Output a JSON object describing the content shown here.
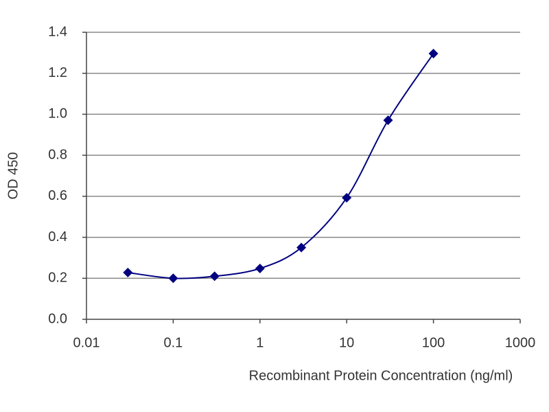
{
  "chart_data": {
    "type": "line",
    "x_label": "Recombinant Protein Concentration (ng/ml)",
    "y_label": "OD 450",
    "x_scale": "log",
    "grid": true,
    "x": [
      0.03,
      0.1,
      0.3,
      1,
      3,
      10,
      30,
      100
    ],
    "series": [
      {
        "color": "#000080",
        "values": [
          0.228,
          0.2,
          0.21,
          0.248,
          0.35,
          0.593,
          0.971,
          1.296
        ]
      }
    ],
    "xlim": [
      0.01,
      1000
    ],
    "xticks": [
      0.01,
      0.1,
      1,
      10,
      100,
      1000
    ],
    "ylim": [
      0,
      1.4
    ],
    "yticks": [
      {
        "value": 0,
        "label": "0.0"
      },
      0.2,
      0.4,
      0.6,
      0.8,
      {
        "value": 1,
        "label": "1.0"
      },
      1.2,
      1.4
    ]
  }
}
